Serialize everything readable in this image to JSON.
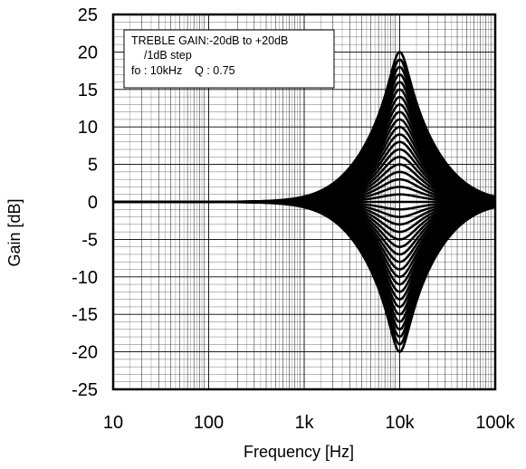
{
  "chart_data": {
    "type": "line",
    "xscale": "log",
    "xlim": [
      10,
      100000
    ],
    "ylim": [
      -25,
      25
    ],
    "grid": true,
    "legend": "none",
    "xlabel": "Frequency [Hz]",
    "ylabel": "Gain [dB]",
    "x_ticks": [
      10,
      100,
      1000,
      10000,
      100000
    ],
    "x_tick_labels": [
      "10",
      "100",
      "1k",
      "10k",
      "100k"
    ],
    "y_ticks": [
      -25,
      -20,
      -15,
      -10,
      -5,
      0,
      5,
      10,
      15,
      20,
      25
    ],
    "y_tick_labels": [
      "-25",
      "-20",
      "-15",
      "-10",
      "-5",
      "0",
      "5",
      "10",
      "15",
      "20",
      "25"
    ],
    "annotation": [
      "TREBLE GAIN:-20dB to +20dB",
      "/1dB step",
      "fo : 10kHz    Q : 0.75"
    ],
    "filter": {
      "fo_hz": 10000,
      "q": 0.75,
      "gain_min_db": -20,
      "gain_max_db": 20,
      "gain_step_db": 1
    },
    "series_gains_db": [
      -20,
      -19,
      -18,
      -17,
      -16,
      -15,
      -14,
      -13,
      -12,
      -11,
      -10,
      -9,
      -8,
      -7,
      -6,
      -5,
      -4,
      -3,
      -2,
      -1,
      0,
      1,
      2,
      3,
      4,
      5,
      6,
      7,
      8,
      9,
      10,
      11,
      12,
      13,
      14,
      15,
      16,
      17,
      18,
      19,
      20
    ],
    "line_color": "#000000"
  }
}
